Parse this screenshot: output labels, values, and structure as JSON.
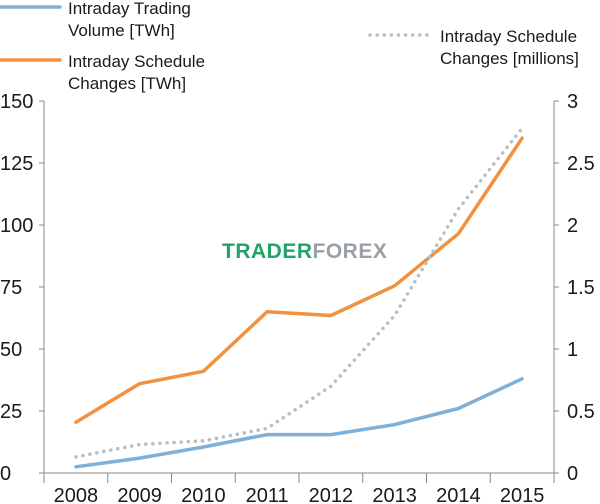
{
  "chart_data": {
    "type": "line",
    "categories": [
      "2008",
      "2009",
      "2010",
      "2011",
      "2012",
      "2013",
      "2014",
      "2015"
    ],
    "y_left": {
      "min": 0,
      "max": 150,
      "ticks": [
        "0",
        "25",
        "50",
        "75",
        "100",
        "125",
        "150"
      ]
    },
    "y_right": {
      "min": 0,
      "max": 3,
      "ticks": [
        "0",
        "0.5",
        "1",
        "1.5",
        "2",
        "2.5",
        "3"
      ]
    },
    "grid": false,
    "legend_placement": "top",
    "series": [
      {
        "name_lines": [
          "Intraday Trading",
          "Volume [TWh]"
        ],
        "axis": "left",
        "style": "solid",
        "color": "#7fb0d8",
        "values": [
          2.5,
          6,
          10.5,
          15.5,
          15.5,
          19.5,
          26,
          38
        ]
      },
      {
        "name_lines": [
          "Intraday Schedule",
          "Changes [TWh]"
        ],
        "axis": "left",
        "style": "solid",
        "color": "#f2913f",
        "values": [
          20.5,
          36,
          41,
          65,
          63.5,
          75.5,
          96.5,
          135
        ]
      },
      {
        "name_lines": [
          "Intraday Schedule",
          "Changes [millions]"
        ],
        "axis": "right",
        "style": "dotted",
        "color": "#b7bfbf",
        "values": [
          0.13,
          0.23,
          0.26,
          0.36,
          0.7,
          1.27,
          2.13,
          2.78
        ]
      }
    ]
  },
  "watermark": {
    "part1": "TRADER",
    "part2": "FOR",
    "part3": "EX",
    "color1": "#21a366",
    "color2": "#9aa0a6"
  }
}
